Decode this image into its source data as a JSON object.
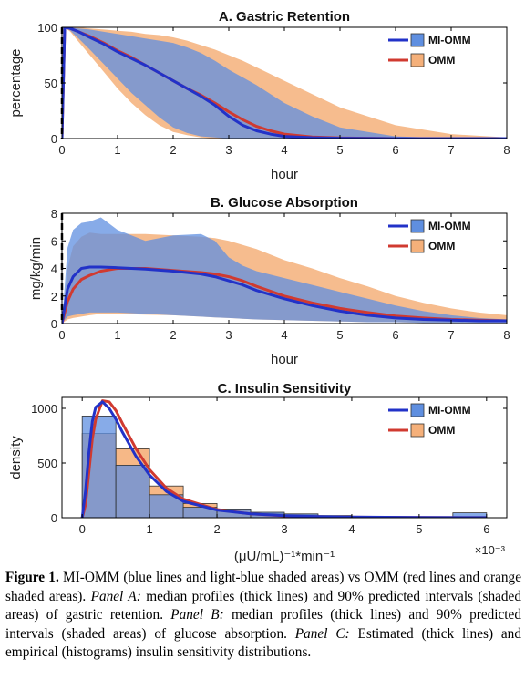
{
  "chart_data": [
    {
      "type": "line",
      "title": "A. Gastric Retention",
      "xlabel": "hour",
      "ylabel": "percentage",
      "xlim": [
        0,
        8
      ],
      "ylim": [
        0,
        100
      ],
      "xticks": [
        0,
        1,
        2,
        3,
        4,
        5,
        6,
        7,
        8
      ],
      "yticks": [
        0,
        50,
        100
      ],
      "x_tick_labels": [
        "0",
        "1",
        "2",
        "3",
        "4",
        "5",
        "6",
        "7",
        "8"
      ],
      "y_tick_labels": [
        "0",
        "50",
        "100"
      ],
      "legend": "top-right",
      "series": [
        {
          "name": "MI-OMM",
          "color": "#2232c8",
          "band_color": "#5f8fe0",
          "x": [
            0,
            0.05,
            0.15,
            0.3,
            0.5,
            0.75,
            1.0,
            1.25,
            1.5,
            1.75,
            2.0,
            2.25,
            2.5,
            2.75,
            3.0,
            3.25,
            3.5,
            3.75,
            4.0,
            4.5,
            5.0,
            6.0,
            7.0,
            8.0
          ],
          "median": [
            0,
            100,
            99,
            96,
            91,
            85,
            78,
            72,
            66,
            59,
            52,
            45,
            38,
            30,
            20,
            12,
            7,
            4,
            2,
            0.8,
            0.3,
            0,
            0,
            0
          ],
          "lower": [
            0,
            100,
            97,
            90,
            80,
            67,
            54,
            41,
            30,
            19,
            10,
            5,
            2,
            1,
            0,
            0,
            0,
            0,
            0,
            0,
            0,
            0,
            0,
            0
          ],
          "upper": [
            0,
            100,
            100,
            99,
            98,
            96,
            94,
            92,
            90,
            88,
            86,
            82,
            77,
            70,
            62,
            55,
            48,
            40,
            32,
            20,
            10,
            2,
            0.3,
            0
          ]
        },
        {
          "name": "OMM",
          "color": "#d03a30",
          "band_color": "#f5b07a",
          "x": [
            0,
            0.05,
            0.15,
            0.3,
            0.5,
            0.75,
            1.0,
            1.25,
            1.5,
            1.75,
            2.0,
            2.25,
            2.5,
            2.75,
            3.0,
            3.25,
            3.5,
            3.75,
            4.0,
            4.5,
            5.0,
            6.0,
            7.0,
            8.0
          ],
          "median": [
            0,
            100,
            99,
            96,
            92,
            86,
            79,
            73,
            66,
            59,
            52,
            45,
            39,
            32,
            24,
            17,
            11,
            7,
            4,
            1.5,
            0.6,
            0,
            0,
            0
          ],
          "lower": [
            0,
            100,
            96,
            87,
            75,
            60,
            45,
            32,
            21,
            12,
            6,
            3,
            1,
            0,
            0,
            0,
            0,
            0,
            0,
            0,
            0,
            0,
            0,
            0
          ],
          "upper": [
            0,
            100,
            100,
            100,
            99,
            98,
            97,
            96,
            94,
            93,
            91,
            88,
            84,
            80,
            75,
            70,
            64,
            58,
            52,
            40,
            28,
            12,
            4,
            1
          ]
        }
      ]
    },
    {
      "type": "line",
      "title": "B. Glucose Absorption",
      "xlabel": "hour",
      "ylabel": "mg/kg/min",
      "xlim": [
        0,
        8
      ],
      "ylim": [
        0,
        8
      ],
      "xticks": [
        0,
        1,
        2,
        3,
        4,
        5,
        6,
        7,
        8
      ],
      "yticks": [
        0,
        2,
        4,
        6,
        8
      ],
      "x_tick_labels": [
        "0",
        "1",
        "2",
        "3",
        "4",
        "5",
        "6",
        "7",
        "8"
      ],
      "y_tick_labels": [
        "0",
        "2",
        "4",
        "6",
        "8"
      ],
      "legend": "top-right",
      "series": [
        {
          "name": "MI-OMM",
          "color": "#2232c8",
          "band_color": "#5f8fe0",
          "x": [
            0,
            0.1,
            0.2,
            0.35,
            0.5,
            0.7,
            1.0,
            1.5,
            2.0,
            2.5,
            2.75,
            3.0,
            3.25,
            3.5,
            4.0,
            4.5,
            5.0,
            5.5,
            6.0,
            6.5,
            7.0,
            7.5,
            8.0
          ],
          "median": [
            0,
            2.5,
            3.4,
            4.0,
            4.1,
            4.1,
            4.05,
            3.95,
            3.8,
            3.6,
            3.4,
            3.1,
            2.8,
            2.4,
            1.8,
            1.3,
            0.9,
            0.6,
            0.4,
            0.3,
            0.25,
            0.2,
            0.2
          ],
          "lower": [
            0,
            0.5,
            0.6,
            0.7,
            0.8,
            0.8,
            0.8,
            0.7,
            0.6,
            0.5,
            0.45,
            0.4,
            0.35,
            0.3,
            0.25,
            0.2,
            0.15,
            0.1,
            0.1,
            0.05,
            0.05,
            0.05,
            0.05
          ],
          "upper": [
            0,
            5.5,
            6.8,
            7.3,
            7.4,
            7.7,
            6.8,
            6.0,
            6.4,
            6.5,
            6.0,
            4.8,
            4.2,
            3.8,
            3.3,
            2.8,
            2.3,
            1.8,
            1.3,
            0.9,
            0.6,
            0.4,
            0.3
          ]
        },
        {
          "name": "OMM",
          "color": "#d03a30",
          "band_color": "#f5b07a",
          "x": [
            0,
            0.1,
            0.2,
            0.35,
            0.5,
            0.7,
            1.0,
            1.5,
            2.0,
            2.5,
            2.75,
            3.0,
            3.25,
            3.5,
            4.0,
            4.5,
            5.0,
            5.5,
            6.0,
            6.5,
            7.0,
            7.5,
            8.0
          ],
          "median": [
            0,
            1.6,
            2.5,
            3.2,
            3.5,
            3.8,
            4.0,
            4.0,
            3.85,
            3.7,
            3.6,
            3.4,
            3.1,
            2.7,
            2.0,
            1.5,
            1.1,
            0.8,
            0.55,
            0.4,
            0.3,
            0.25,
            0.2
          ],
          "lower": [
            0,
            0.3,
            0.4,
            0.5,
            0.6,
            0.7,
            0.7,
            0.65,
            0.6,
            0.5,
            0.45,
            0.4,
            0.35,
            0.3,
            0.25,
            0.2,
            0.15,
            0.1,
            0.1,
            0.05,
            0.05,
            0.05,
            0.05
          ],
          "upper": [
            0,
            4.0,
            5.6,
            6.3,
            6.6,
            6.5,
            6.5,
            6.5,
            6.4,
            6.3,
            6.2,
            6.0,
            5.7,
            5.4,
            4.6,
            4.0,
            3.3,
            2.7,
            2.0,
            1.5,
            1.1,
            0.8,
            0.6
          ]
        }
      ]
    },
    {
      "type": "bar",
      "title": "C. Insulin Sensitivity",
      "xlabel": "(μU/mL)⁻¹*min⁻¹",
      "ylabel": "density",
      "x_exponent_label": "×10⁻³",
      "xlim": [
        -0.3,
        6.3
      ],
      "ylim": [
        0,
        1100
      ],
      "xticks": [
        0,
        1,
        2,
        3,
        4,
        5,
        6
      ],
      "yticks": [
        0,
        500,
        1000
      ],
      "x_tick_labels": [
        "0",
        "1",
        "2",
        "3",
        "4",
        "5",
        "6"
      ],
      "y_tick_labels": [
        "0",
        "500",
        "1000"
      ],
      "legend": "top-right",
      "histograms": [
        {
          "name": "MI-OMM",
          "color": "#5f8fe0",
          "bin_edges": [
            0,
            0.5,
            1.0,
            1.5,
            2.0,
            2.5,
            3.0,
            3.5,
            4.0,
            4.5,
            5.0,
            5.5,
            6.0
          ],
          "density": [
            930,
            480,
            210,
            95,
            80,
            50,
            35,
            20,
            8,
            5,
            3,
            45
          ]
        },
        {
          "name": "OMM",
          "color": "#f5b07a",
          "bin_edges": [
            0,
            0.5,
            1.0,
            1.5,
            2.0,
            2.5,
            3.0,
            3.5,
            4.0,
            4.5,
            5.0,
            5.5,
            6.0
          ],
          "density": [
            770,
            630,
            290,
            130,
            70,
            40,
            25,
            10,
            5,
            3,
            2,
            0
          ]
        }
      ],
      "series": [
        {
          "name": "MI-OMM",
          "color": "#2232c8",
          "x": [
            0,
            0.05,
            0.1,
            0.15,
            0.2,
            0.3,
            0.4,
            0.5,
            0.6,
            0.8,
            1.0,
            1.25,
            1.5,
            2.0,
            2.5,
            3.0,
            3.5,
            4.0,
            5.0,
            6.0
          ],
          "values": [
            0,
            250,
            600,
            880,
            1010,
            1060,
            1000,
            900,
            780,
            560,
            390,
            240,
            150,
            70,
            35,
            18,
            10,
            6,
            2,
            1
          ]
        },
        {
          "name": "OMM",
          "color": "#d03a30",
          "x": [
            0,
            0.05,
            0.1,
            0.15,
            0.2,
            0.3,
            0.4,
            0.5,
            0.6,
            0.8,
            1.0,
            1.25,
            1.5,
            2.0,
            2.5,
            3.0,
            3.5,
            4.0,
            5.0,
            6.0
          ],
          "values": [
            0,
            120,
            420,
            720,
            900,
            1070,
            1060,
            980,
            860,
            630,
            440,
            270,
            170,
            75,
            35,
            17,
            9,
            5,
            2,
            1
          ]
        }
      ]
    }
  ],
  "caption": {
    "label": "Figure 1.",
    "text_1": " MI-OMM (blue lines and light-blue shaded areas) vs OMM (red lines and orange shaded areas). ",
    "panel_a": "Panel A:",
    "text_2": " median profiles (thick lines) and 90% predicted intervals (shaded areas) of gastric retention. ",
    "panel_b": "Panel B:",
    "text_3": " median profiles (thick lines) and 90% predicted intervals (shaded areas) of glucose absorption. ",
    "panel_c": "Panel C:",
    "text_4": " Estimated (thick lines) and empirical (histograms) insulin sensitivity distributions."
  }
}
